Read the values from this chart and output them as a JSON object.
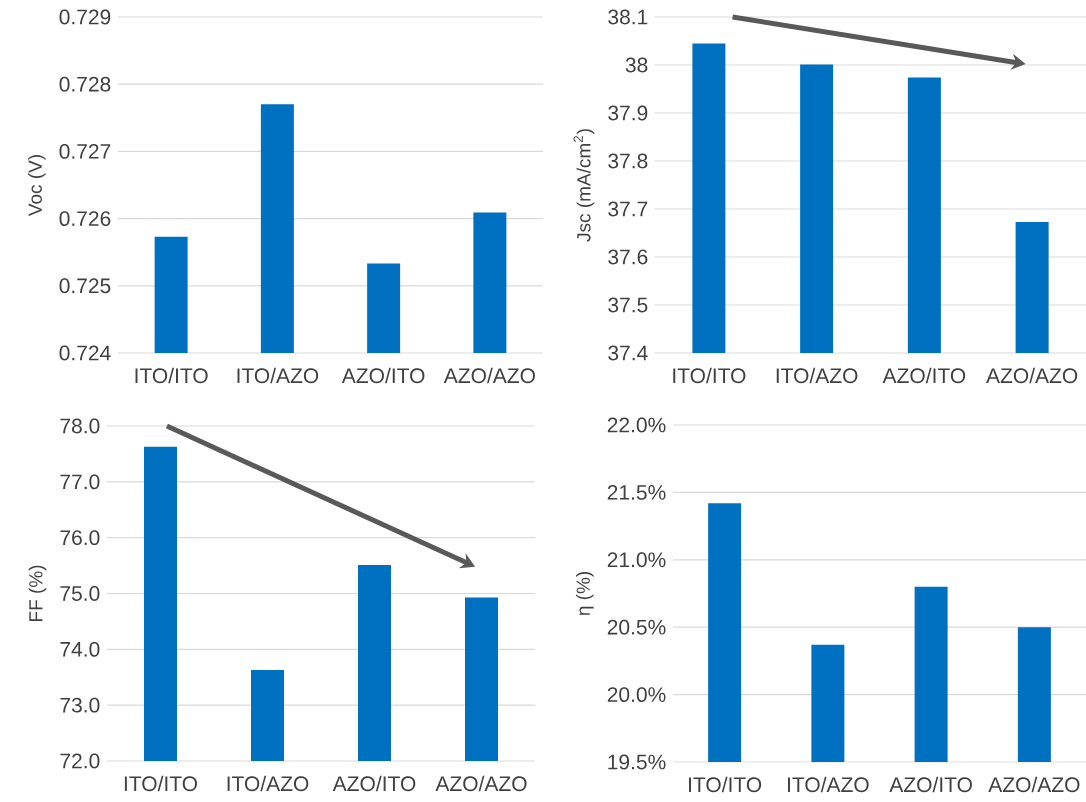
{
  "chart_data": [
    {
      "type": "bar",
      "categories": [
        "ITO/ITO",
        "ITO/AZO",
        "AZO/ITO",
        "AZO/AZO"
      ],
      "values": [
        0.72573,
        0.7277,
        0.72533,
        0.72609
      ],
      "color": "#0070c0",
      "ylabel": "Voc (V)",
      "ylim": [
        0.724,
        0.729
      ],
      "yticks": [
        0.724,
        0.725,
        0.726,
        0.727,
        0.728,
        0.729
      ],
      "grid": "y"
    },
    {
      "type": "bar",
      "categories": [
        "ITO/ITO",
        "ITO/AZO",
        "AZO/ITO",
        "AZO/AZO"
      ],
      "values": [
        38.045,
        38.001,
        37.974,
        37.673
      ],
      "color": "#0070c0",
      "ylabel": "Jsc (mA/cm$^{2}$)",
      "ylim": [
        37.4,
        38.1
      ],
      "yticks": [
        37.4,
        37.5,
        37.6,
        37.7,
        37.8,
        37.9,
        38,
        38.1
      ],
      "grid": "y"
    },
    {
      "type": "bar",
      "categories": [
        "ITO/ITO",
        "ITO/AZO",
        "AZO/ITO",
        "AZO/AZO"
      ],
      "values": [
        77.63,
        73.63,
        75.51,
        74.93
      ],
      "color": "#0070c0",
      "ylabel": "FF (%)",
      "ylim": [
        72,
        78
      ],
      "yticks": [
        {
          "value": 72,
          "label": "72.0"
        },
        {
          "value": 73,
          "label": "73.0"
        },
        {
          "value": 74,
          "label": "74.0"
        },
        {
          "value": 75,
          "label": "75.0"
        },
        {
          "value": 76,
          "label": "76.0"
        },
        {
          "value": 77,
          "label": "77.0"
        },
        {
          "value": 78,
          "label": "78.0"
        }
      ],
      "grid": "y"
    },
    {
      "type": "bar",
      "categories": [
        "ITO/ITO",
        "ITO/AZO",
        "AZO/ITO",
        "AZO/AZO"
      ],
      "values": [
        21.42,
        20.37,
        20.8,
        20.5
      ],
      "color": "#0070c0",
      "ylabel": "η (%)",
      "ylim": [
        19.5,
        22
      ],
      "yticks": [
        {
          "value": 19.5,
          "label": "19.5%"
        },
        {
          "value": 20,
          "label": "20.0%"
        },
        {
          "value": 20.5,
          "label": "20.5%"
        },
        {
          "value": 21,
          "label": "21.0%"
        },
        {
          "value": 21.5,
          "label": "21.5%"
        },
        {
          "value": 22,
          "label": "22.0%"
        }
      ],
      "grid": "y"
    }
  ]
}
